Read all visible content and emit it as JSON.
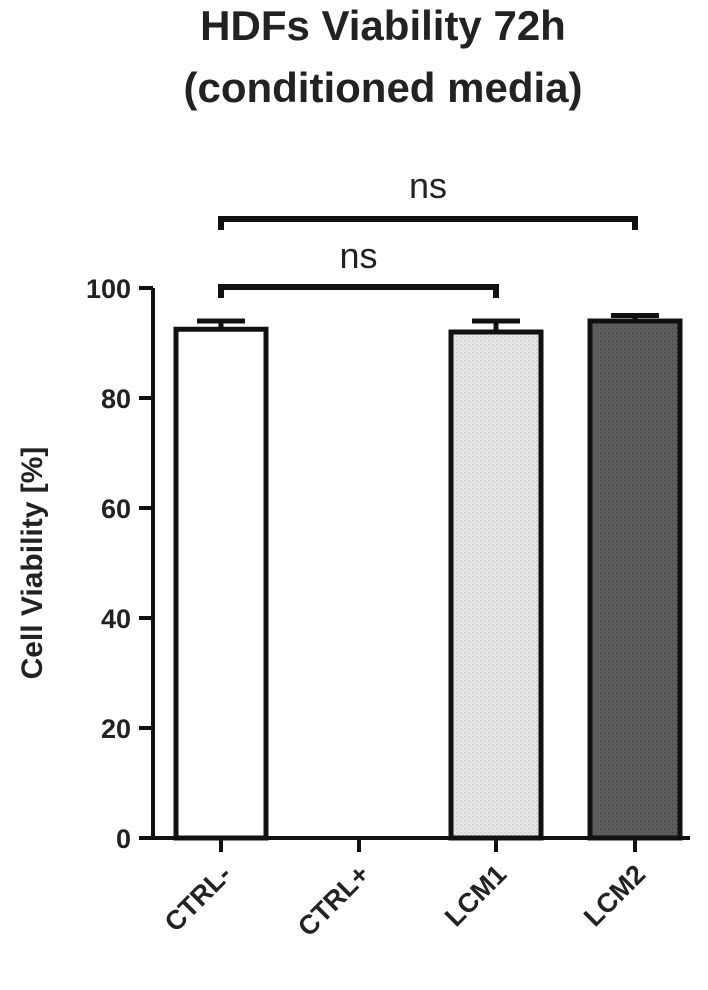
{
  "chart_data": {
    "type": "bar",
    "title_lines": [
      "HDFs Viability 72h",
      "(conditioned media)"
    ],
    "xlabel": "",
    "ylabel": "Cell Viability [%]",
    "ylim": [
      0,
      100
    ],
    "yticks": [
      0,
      20,
      40,
      60,
      80,
      100
    ],
    "categories": [
      "CTRL-",
      "CTRL+",
      "LCM1",
      "LCM2"
    ],
    "values": [
      92.5,
      0,
      92,
      94
    ],
    "errors": [
      1.5,
      0,
      2,
      1
    ],
    "bar_fills": [
      "#ffffff",
      "#ffffff",
      "#dcdcdc",
      "#5a5a5a"
    ],
    "comparisons": [
      {
        "from": "CTRL-",
        "to": "LCM1",
        "label": "ns"
      },
      {
        "from": "CTRL-",
        "to": "LCM2",
        "label": "ns"
      }
    ],
    "grid": false,
    "legend": "none"
  }
}
